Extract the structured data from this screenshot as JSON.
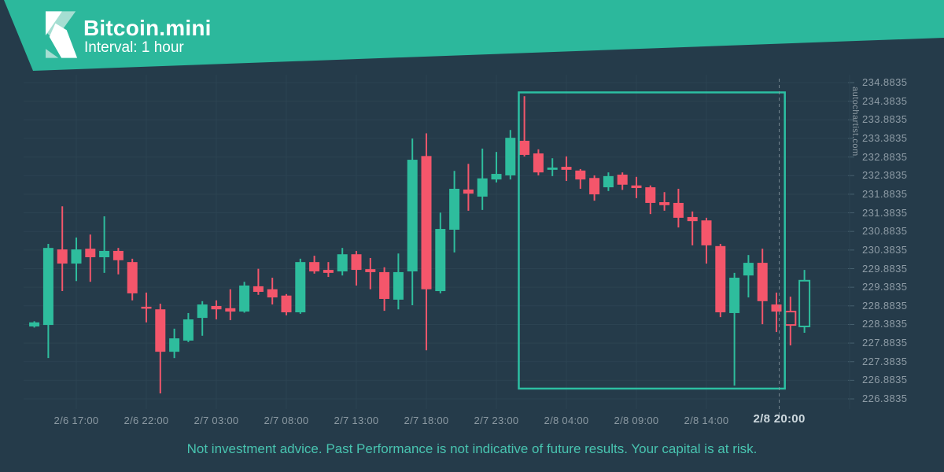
{
  "header": {
    "title": "Bitcoin.mini",
    "subtitle": "Interval: 1 hour"
  },
  "watermark": "autochartist.com",
  "footer": {
    "disclaimer": "Not investment advice. Past Performance is not indicative of future results. Your capital is at risk."
  },
  "colors": {
    "background": "#253b4a",
    "banner": "#2cb89c",
    "logo_mint": "#a5ded2",
    "bull": "#2ebd9d",
    "bear": "#f4566b",
    "pattern_box": "#2cc6a6",
    "grid": "#2c4352",
    "tick": "#46606e",
    "dashed_line": "#8a99a3",
    "axis_text": "#8e9ca6",
    "current_label_text": "#cdd8de",
    "footer_text": "#48c4b0"
  },
  "chart_data": {
    "type": "candlestick",
    "symbol": "Bitcoin.mini",
    "interval": "1 hour",
    "grid": true,
    "y_axis": {
      "min": 226.3835,
      "max": 234.8835,
      "step": 0.5,
      "labels": [
        "234.8835",
        "234.3835",
        "233.8835",
        "233.3835",
        "232.8835",
        "232.3835",
        "231.8835",
        "231.3835",
        "230.8835",
        "230.3835",
        "229.8835",
        "229.3835",
        "228.8835",
        "228.3835",
        "227.8835",
        "227.3835",
        "226.8835",
        "226.3835"
      ]
    },
    "x_axis": {
      "ticks": [
        {
          "label": "2/6 17:00",
          "index": 3
        },
        {
          "label": "2/6 22:00",
          "index": 8
        },
        {
          "label": "2/7 03:00",
          "index": 13
        },
        {
          "label": "2/7 08:00",
          "index": 18
        },
        {
          "label": "2/7 13:00",
          "index": 23
        },
        {
          "label": "2/7 18:00",
          "index": 28
        },
        {
          "label": "2/7 23:00",
          "index": 33
        },
        {
          "label": "2/8 04:00",
          "index": 38
        },
        {
          "label": "2/8 09:00",
          "index": 43
        },
        {
          "label": "2/8 14:00",
          "index": 48
        }
      ],
      "current_time": {
        "label": "2/8 20:00",
        "index": 53.2
      }
    },
    "pattern_box": {
      "from_index": 34.6,
      "to_index": 53.6,
      "top_price": 234.62,
      "bottom_price": 226.66
    },
    "dashed_line_index": 53.2,
    "candles": [
      {
        "time": "2/6 14:00",
        "o": 228.33,
        "h": 228.47,
        "l": 228.3,
        "c": 228.44,
        "hollow": false
      },
      {
        "time": "2/6 15:00",
        "o": 228.37,
        "h": 230.55,
        "l": 227.48,
        "c": 230.44,
        "hollow": false
      },
      {
        "time": "2/6 16:00",
        "o": 230.4,
        "h": 231.56,
        "l": 229.28,
        "c": 230.02,
        "hollow": false
      },
      {
        "time": "2/6 17:00",
        "o": 230.02,
        "h": 230.72,
        "l": 229.55,
        "c": 230.4,
        "hollow": false
      },
      {
        "time": "2/6 18:00",
        "o": 230.42,
        "h": 230.8,
        "l": 229.53,
        "c": 230.19,
        "hollow": false
      },
      {
        "time": "2/6 19:00",
        "o": 230.19,
        "h": 231.29,
        "l": 229.77,
        "c": 230.36,
        "hollow": false
      },
      {
        "time": "2/6 20:00",
        "o": 230.36,
        "h": 230.44,
        "l": 229.73,
        "c": 230.11,
        "hollow": false
      },
      {
        "time": "2/6 21:00",
        "o": 230.06,
        "h": 230.15,
        "l": 229.03,
        "c": 229.22,
        "hollow": false
      },
      {
        "time": "2/6 22:00",
        "o": 228.86,
        "h": 229.24,
        "l": 228.44,
        "c": 228.82,
        "hollow": false
      },
      {
        "time": "2/6 23:00",
        "o": 228.79,
        "h": 228.94,
        "l": 226.53,
        "c": 227.65,
        "hollow": false
      },
      {
        "time": "2/7 00:00",
        "o": 227.65,
        "h": 228.27,
        "l": 227.48,
        "c": 228.01,
        "hollow": false
      },
      {
        "time": "2/7 01:00",
        "o": 227.95,
        "h": 228.69,
        "l": 227.91,
        "c": 228.52,
        "hollow": false
      },
      {
        "time": "2/7 02:00",
        "o": 228.56,
        "h": 229.01,
        "l": 228.08,
        "c": 228.92,
        "hollow": false
      },
      {
        "time": "2/7 03:00",
        "o": 228.88,
        "h": 229.03,
        "l": 228.52,
        "c": 228.79,
        "hollow": false
      },
      {
        "time": "2/7 04:00",
        "o": 228.82,
        "h": 229.33,
        "l": 228.5,
        "c": 228.73,
        "hollow": false
      },
      {
        "time": "2/7 05:00",
        "o": 228.73,
        "h": 229.53,
        "l": 228.7,
        "c": 229.43,
        "hollow": false
      },
      {
        "time": "2/7 06:00",
        "o": 229.41,
        "h": 229.88,
        "l": 229.18,
        "c": 229.26,
        "hollow": false
      },
      {
        "time": "2/7 07:00",
        "o": 229.33,
        "h": 229.64,
        "l": 228.92,
        "c": 229.11,
        "hollow": false
      },
      {
        "time": "2/7 08:00",
        "o": 229.16,
        "h": 229.2,
        "l": 228.63,
        "c": 228.71,
        "hollow": false
      },
      {
        "time": "2/7 09:00",
        "o": 228.71,
        "h": 230.15,
        "l": 228.67,
        "c": 230.06,
        "hollow": false
      },
      {
        "time": "2/7 10:00",
        "o": 230.06,
        "h": 230.23,
        "l": 229.75,
        "c": 229.81,
        "hollow": false
      },
      {
        "time": "2/7 11:00",
        "o": 229.85,
        "h": 230.06,
        "l": 229.66,
        "c": 229.77,
        "hollow": false
      },
      {
        "time": "2/7 12:00",
        "o": 229.81,
        "h": 230.44,
        "l": 229.7,
        "c": 230.27,
        "hollow": false
      },
      {
        "time": "2/7 13:00",
        "o": 230.27,
        "h": 230.36,
        "l": 229.43,
        "c": 229.85,
        "hollow": false
      },
      {
        "time": "2/7 14:00",
        "o": 229.87,
        "h": 230.17,
        "l": 229.33,
        "c": 229.79,
        "hollow": false
      },
      {
        "time": "2/7 15:00",
        "o": 229.79,
        "h": 229.92,
        "l": 228.75,
        "c": 229.07,
        "hollow": false
      },
      {
        "time": "2/7 16:00",
        "o": 229.05,
        "h": 230.29,
        "l": 228.79,
        "c": 229.79,
        "hollow": false
      },
      {
        "time": "2/7 17:00",
        "o": 229.81,
        "h": 233.38,
        "l": 228.9,
        "c": 232.81,
        "hollow": false
      },
      {
        "time": "2/7 18:00",
        "o": 232.91,
        "h": 233.52,
        "l": 227.69,
        "c": 229.33,
        "hollow": false
      },
      {
        "time": "2/7 19:00",
        "o": 229.28,
        "h": 231.39,
        "l": 229.22,
        "c": 230.95,
        "hollow": false
      },
      {
        "time": "2/7 20:00",
        "o": 230.93,
        "h": 232.51,
        "l": 230.32,
        "c": 232.03,
        "hollow": false
      },
      {
        "time": "2/7 21:00",
        "o": 232.01,
        "h": 232.7,
        "l": 231.44,
        "c": 231.9,
        "hollow": false
      },
      {
        "time": "2/7 22:00",
        "o": 231.82,
        "h": 233.11,
        "l": 231.46,
        "c": 232.31,
        "hollow": false
      },
      {
        "time": "2/7 23:00",
        "o": 232.28,
        "h": 233.02,
        "l": 232.2,
        "c": 232.43,
        "hollow": false
      },
      {
        "time": "2/8 00:00",
        "o": 232.39,
        "h": 233.61,
        "l": 232.28,
        "c": 233.4,
        "hollow": false
      },
      {
        "time": "2/8 01:00",
        "o": 233.32,
        "h": 234.52,
        "l": 232.9,
        "c": 232.94,
        "hollow": false
      },
      {
        "time": "2/8 02:00",
        "o": 232.98,
        "h": 233.09,
        "l": 232.39,
        "c": 232.47,
        "hollow": false
      },
      {
        "time": "2/8 03:00",
        "o": 232.54,
        "h": 232.85,
        "l": 232.37,
        "c": 232.6,
        "hollow": false
      },
      {
        "time": "2/8 04:00",
        "o": 232.62,
        "h": 232.9,
        "l": 232.24,
        "c": 232.54,
        "hollow": false
      },
      {
        "time": "2/8 05:00",
        "o": 232.52,
        "h": 232.56,
        "l": 232.03,
        "c": 232.28,
        "hollow": false
      },
      {
        "time": "2/8 06:00",
        "o": 232.32,
        "h": 232.39,
        "l": 231.71,
        "c": 231.88,
        "hollow": false
      },
      {
        "time": "2/8 07:00",
        "o": 232.07,
        "h": 232.47,
        "l": 231.97,
        "c": 232.37,
        "hollow": false
      },
      {
        "time": "2/8 08:00",
        "o": 232.41,
        "h": 232.47,
        "l": 232.0,
        "c": 232.14,
        "hollow": false
      },
      {
        "time": "2/8 09:00",
        "o": 232.12,
        "h": 232.35,
        "l": 231.78,
        "c": 232.05,
        "hollow": false
      },
      {
        "time": "2/8 10:00",
        "o": 232.07,
        "h": 232.12,
        "l": 231.35,
        "c": 231.65,
        "hollow": false
      },
      {
        "time": "2/8 11:00",
        "o": 231.67,
        "h": 231.94,
        "l": 231.44,
        "c": 231.59,
        "hollow": false
      },
      {
        "time": "2/8 12:00",
        "o": 231.65,
        "h": 232.03,
        "l": 230.99,
        "c": 231.25,
        "hollow": false
      },
      {
        "time": "2/8 13:00",
        "o": 231.27,
        "h": 231.42,
        "l": 230.51,
        "c": 231.16,
        "hollow": false
      },
      {
        "time": "2/8 14:00",
        "o": 231.18,
        "h": 231.25,
        "l": 230.02,
        "c": 230.51,
        "hollow": false
      },
      {
        "time": "2/8 15:00",
        "o": 230.49,
        "h": 230.55,
        "l": 228.58,
        "c": 228.71,
        "hollow": false
      },
      {
        "time": "2/8 16:00",
        "o": 228.69,
        "h": 229.77,
        "l": 226.74,
        "c": 229.64,
        "hollow": false
      },
      {
        "time": "2/8 17:00",
        "o": 229.7,
        "h": 230.25,
        "l": 229.11,
        "c": 230.04,
        "hollow": false
      },
      {
        "time": "2/8 18:00",
        "o": 230.04,
        "h": 230.42,
        "l": 228.39,
        "c": 229.01,
        "hollow": false
      },
      {
        "time": "2/8 19:00",
        "o": 228.92,
        "h": 229.24,
        "l": 228.18,
        "c": 228.73,
        "hollow": false
      },
      {
        "time": "2/8 20:00",
        "o": 228.73,
        "h": 229.13,
        "l": 227.82,
        "c": 228.37,
        "hollow": true
      },
      {
        "time": "2/8 21:00",
        "o": 228.33,
        "h": 229.85,
        "l": 228.16,
        "c": 229.56,
        "hollow": true
      }
    ]
  }
}
